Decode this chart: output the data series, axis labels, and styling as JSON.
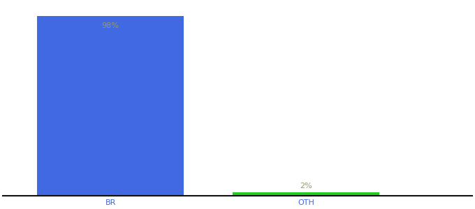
{
  "categories": [
    "BR",
    "OTH"
  ],
  "values": [
    98,
    2
  ],
  "bar_colors": [
    "#4169e1",
    "#22cc22"
  ],
  "label_texts": [
    "98%",
    "2%"
  ],
  "label_color": "#999966",
  "ylim": [
    0,
    105
  ],
  "background_color": "#ffffff",
  "bar_width": 0.75,
  "label_fontsize": 8,
  "axis_label_fontsize": 8,
  "axis_label_color": "#4169e1",
  "spine_color": "#111111",
  "figwidth": 6.8,
  "figheight": 3.0,
  "dpi": 100
}
